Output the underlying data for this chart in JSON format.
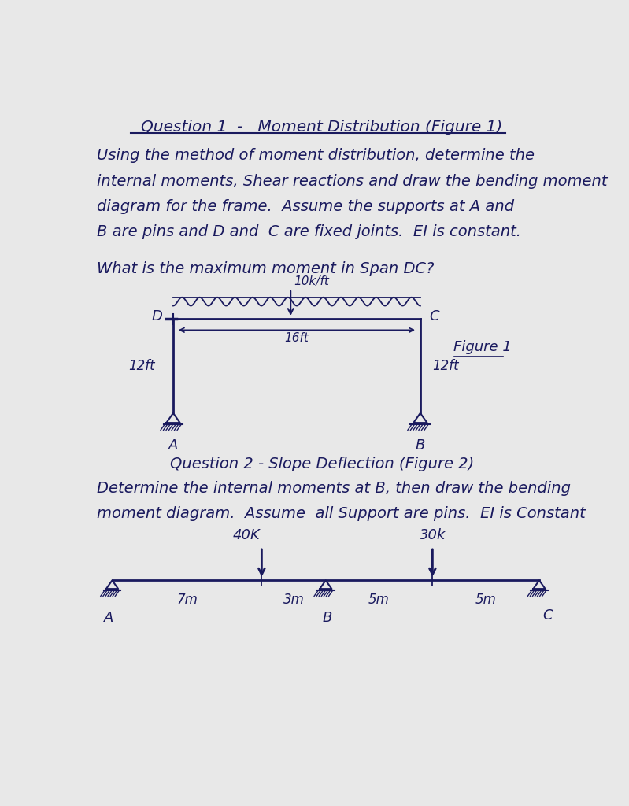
{
  "bg_color": "#e8e8e8",
  "ink_color": "#1a1a5e",
  "title1": "Question 1  -   Moment Distribution (Figure 1)",
  "text1_lines": [
    "Using the method of moment distribution, determine the",
    "internal moments, Shear reactions and draw the bending moment",
    "diagram for the frame.  Assume the supports at A and",
    "B are pins and D and  C are fixed joints.  EI is constant."
  ],
  "question1": "What is the maximum moment in Span DC?",
  "load_label": "10k/ft",
  "dim_label": "16ft",
  "left_h_label": "12ft",
  "right_h_label": "12ft",
  "fig1_label": "Figure 1",
  "title2": "Question 2 - Slope Deflection (Figure 2)",
  "text2_lines": [
    "Determine the internal moments at B, then draw the bending",
    "moment diagram.  Assume  all Support are pins.  EI is Constant"
  ],
  "load1_label": "40K",
  "load2_label": "30k",
  "seg_labels": [
    "7m",
    "3m",
    "5m",
    "5m"
  ],
  "node_labels": [
    "A",
    "B",
    "C"
  ]
}
